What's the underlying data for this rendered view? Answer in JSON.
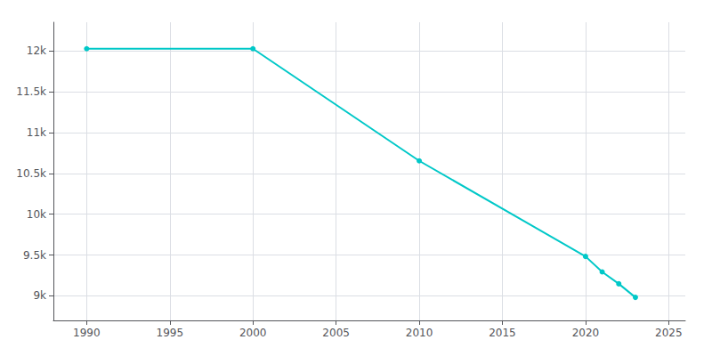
{
  "chart_data": {
    "type": "line",
    "x": [
      1990,
      2000,
      2010,
      2020,
      2021,
      2022,
      2023
    ],
    "values": [
      12026,
      12026,
      10653,
      9483,
      9294,
      9148,
      8982
    ],
    "color": "#00c8c8",
    "marker": "circle",
    "xlim": [
      1988,
      2026
    ],
    "xticks": [
      1990,
      1995,
      2000,
      2005,
      2010,
      2015,
      2020,
      2025
    ],
    "ylim": [
      8700,
      12350
    ],
    "yticks": [
      {
        "value": 9000,
        "label": "9k"
      },
      {
        "value": 9500,
        "label": "9.5k"
      },
      {
        "value": 10000,
        "label": "10k"
      },
      {
        "value": 10500,
        "label": "10.5k"
      },
      {
        "value": 11000,
        "label": "11k"
      },
      {
        "value": 11500,
        "label": "11.5k"
      },
      {
        "value": 12000,
        "label": "12k"
      }
    ],
    "grid": true
  }
}
